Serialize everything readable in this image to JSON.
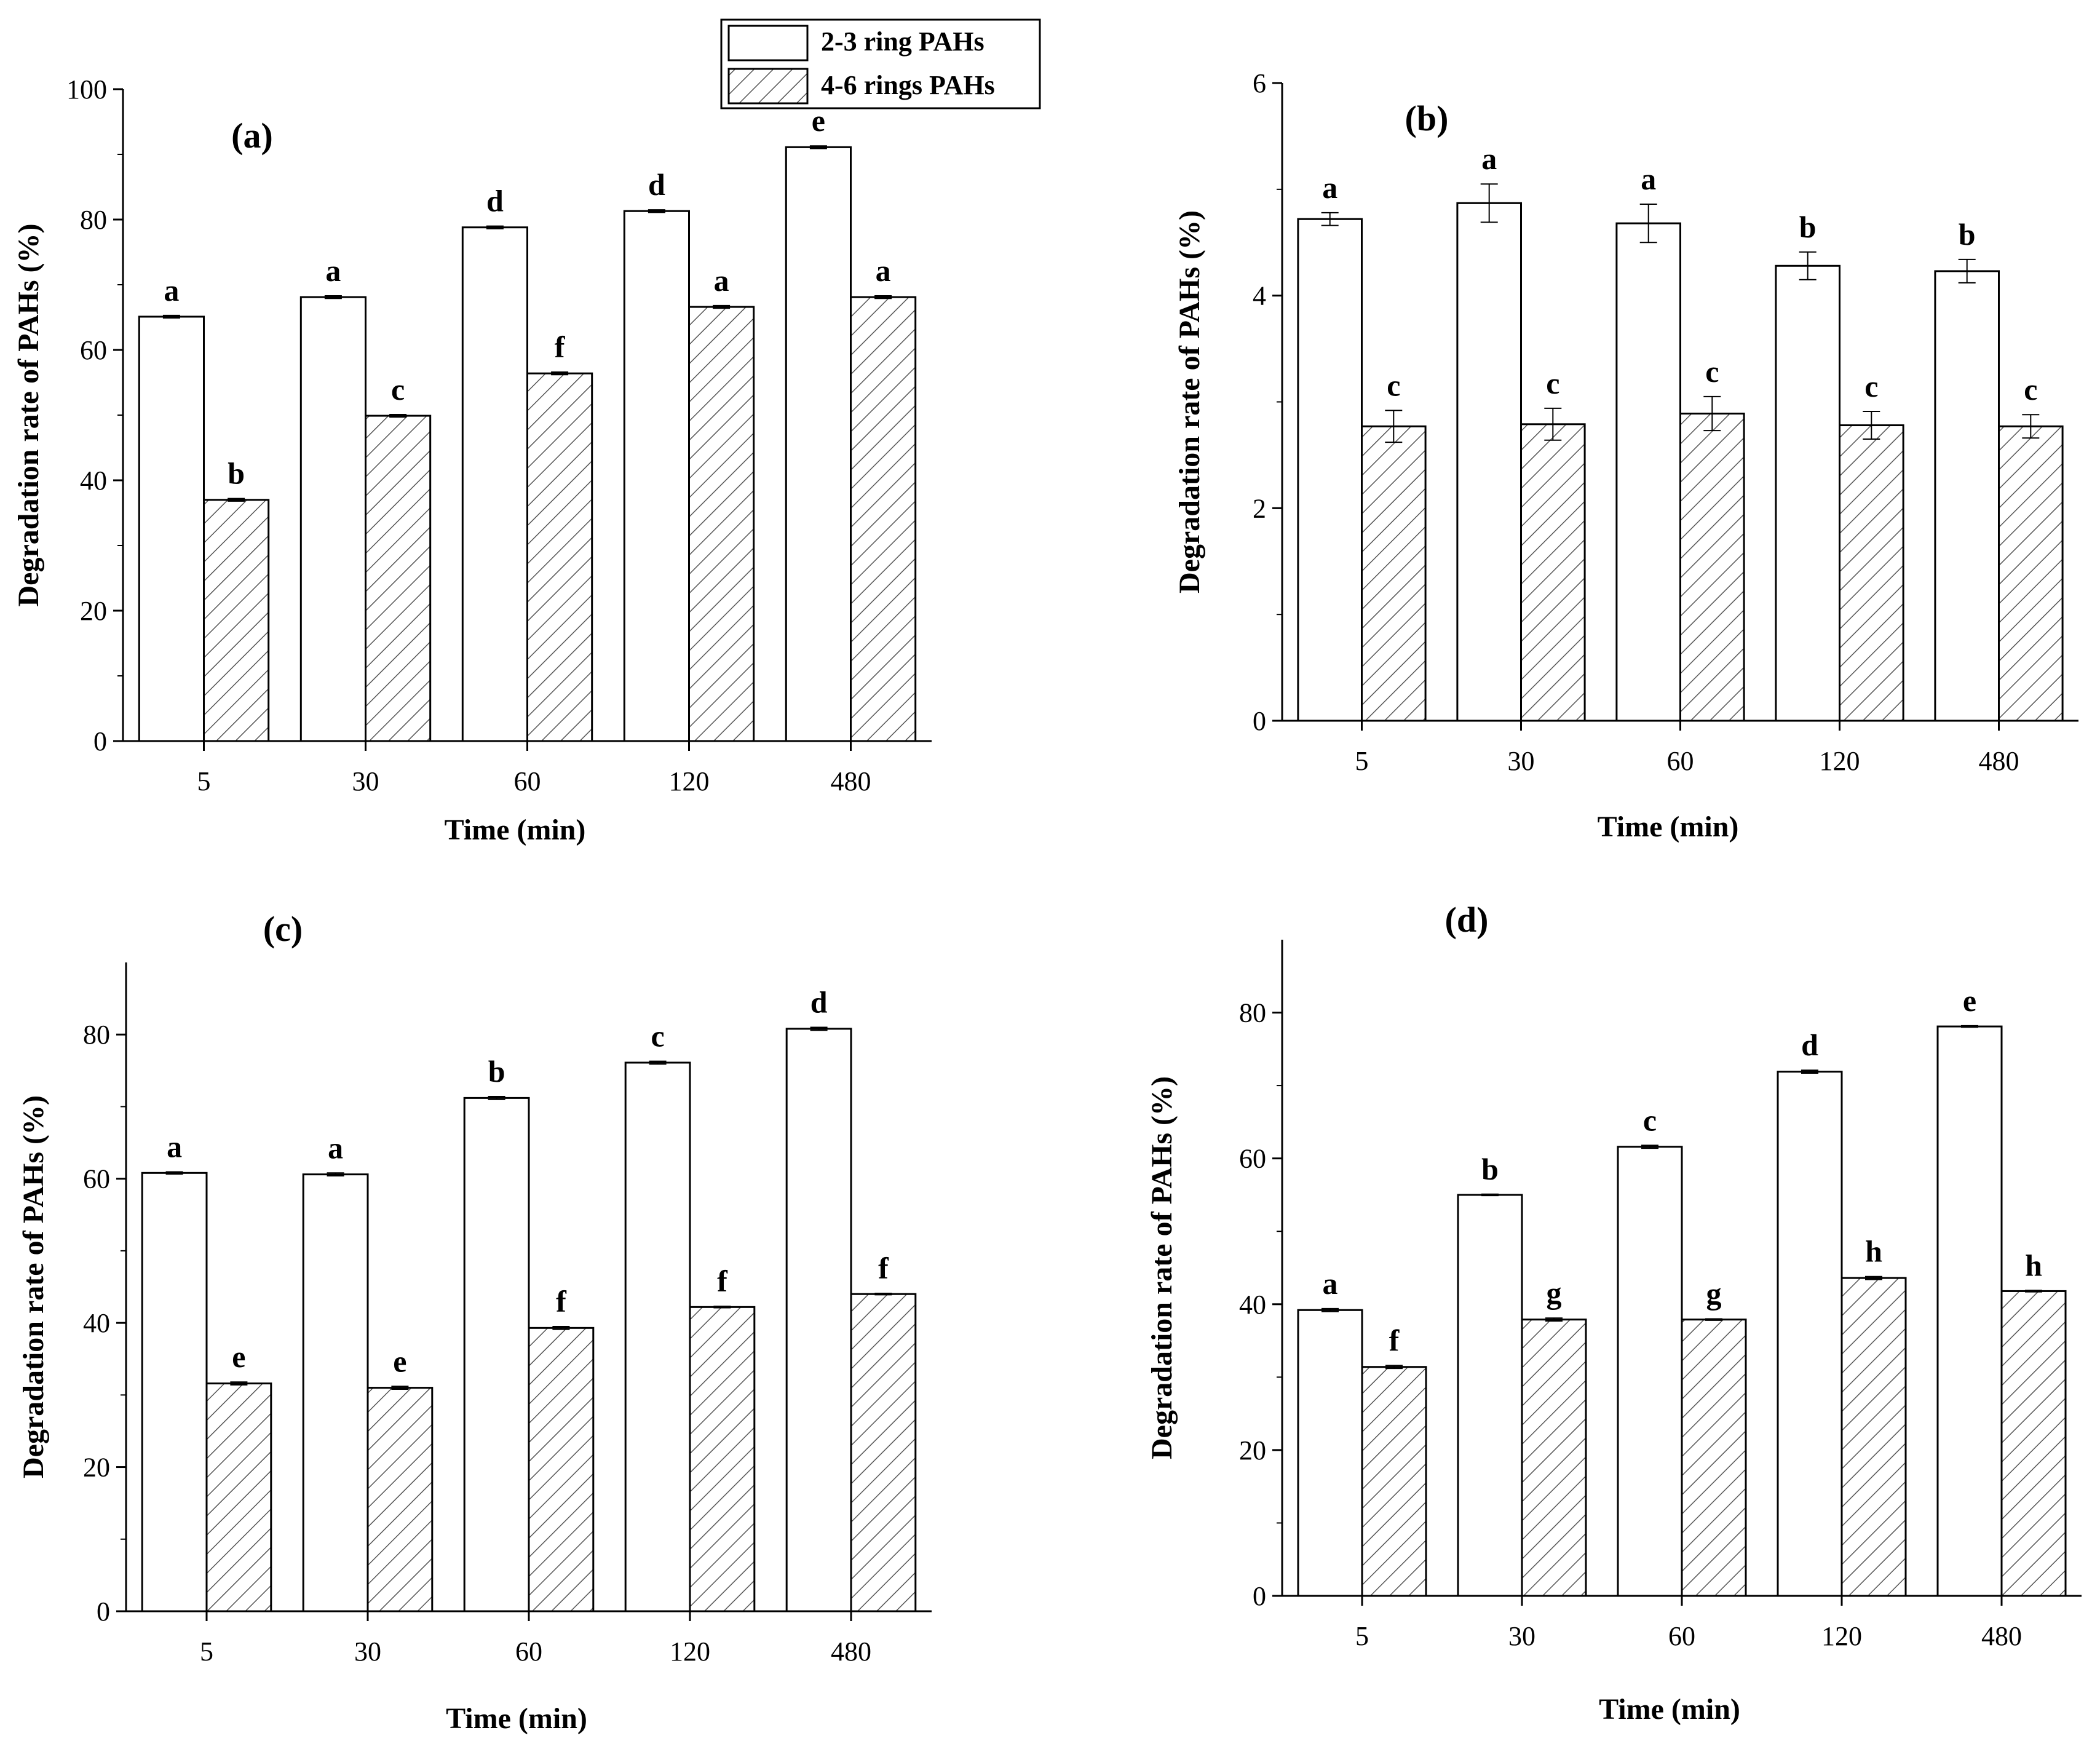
{
  "figure_type": "grouped bar chart with error bars",
  "legend": {
    "placement": "top-center",
    "entries": [
      {
        "label": "2-3 ring PAHs",
        "fill": "open"
      },
      {
        "label": "4-6 rings PAHs",
        "fill": "hatched"
      }
    ]
  },
  "colors": {
    "axis": "#000000",
    "bar_stroke": "#000000",
    "bar_fill": "#ffffff",
    "hatch": "#555555",
    "error_bar": "#000000"
  },
  "chart_data": [
    {
      "type": "bar",
      "panel": "(a)",
      "title": "(a)",
      "xlabel": "Time (min)",
      "ylabel": "Degradation rate of PAHs (%)",
      "ylim": [
        0,
        100
      ],
      "yticks": [
        0,
        20,
        40,
        60,
        80,
        100
      ],
      "categories": [
        "5",
        "30",
        "60",
        "120",
        "480"
      ],
      "series": [
        {
          "name": "2-3 ring PAHs",
          "values": [
            65.1,
            68.1,
            78.8,
            81.3,
            91.1
          ],
          "errors": [
            0.2,
            0.2,
            0.2,
            0.2,
            0.2
          ],
          "labels": [
            "a",
            "a",
            "d",
            "d",
            "e"
          ]
        },
        {
          "name": "4-6 rings PAHs",
          "values": [
            37.0,
            49.9,
            56.4,
            66.6,
            68.1
          ],
          "errors": [
            0.2,
            0.2,
            0.2,
            0.2,
            0.2
          ],
          "labels": [
            "b",
            "c",
            "f",
            "a",
            "a"
          ]
        }
      ]
    },
    {
      "type": "bar",
      "panel": "(b)",
      "title": "(b)",
      "xlabel": "Time (min)",
      "ylabel": "Degradation rate of PAHs (%)",
      "ylim": [
        0,
        6
      ],
      "yticks": [
        0,
        2,
        4,
        6
      ],
      "categories": [
        "5",
        "30",
        "60",
        "120",
        "480"
      ],
      "series": [
        {
          "name": "2-3 ring PAHs",
          "values": [
            4.72,
            4.87,
            4.68,
            4.28,
            4.23
          ],
          "errors": [
            0.06,
            0.18,
            0.18,
            0.13,
            0.11
          ],
          "labels": [
            "a",
            "a",
            "a",
            "b",
            "b"
          ]
        },
        {
          "name": "4-6 rings PAHs",
          "values": [
            2.77,
            2.79,
            2.89,
            2.78,
            2.77
          ],
          "errors": [
            0.15,
            0.15,
            0.16,
            0.13,
            0.11
          ],
          "labels": [
            "c",
            "c",
            "c",
            "c",
            "c"
          ]
        }
      ]
    },
    {
      "type": "bar",
      "panel": "(c)",
      "title": "(c)",
      "xlabel": "Time (min)",
      "ylabel": "Degradation rate of PAHs (%)",
      "ylim": [
        0,
        90
      ],
      "yticks": [
        0,
        20,
        40,
        60,
        80
      ],
      "categories": [
        "5",
        "30",
        "60",
        "120",
        "480"
      ],
      "series": [
        {
          "name": "2-3 ring PAHs",
          "values": [
            60.8,
            60.6,
            71.2,
            76.1,
            80.8
          ],
          "errors": [
            0.15,
            0.2,
            0.2,
            0.2,
            0.2
          ],
          "labels": [
            "a",
            "a",
            "b",
            "c",
            "d"
          ]
        },
        {
          "name": "4-6 rings PAHs",
          "values": [
            31.6,
            31.0,
            39.3,
            42.2,
            44.0
          ],
          "errors": [
            0.2,
            0.2,
            0.2,
            0.1,
            0.1
          ],
          "labels": [
            "e",
            "e",
            "f",
            "f",
            "f"
          ]
        }
      ]
    },
    {
      "type": "bar",
      "panel": "(d)",
      "title": "(d)",
      "xlabel": "Time (min)",
      "ylabel": "Degradation rate of PAHs (%)",
      "ylim": [
        0,
        90
      ],
      "yticks": [
        0,
        20,
        40,
        60,
        80
      ],
      "categories": [
        "5",
        "30",
        "60",
        "120",
        "480"
      ],
      "series": [
        {
          "name": "2-3 ring PAHs",
          "values": [
            39.2,
            55.0,
            61.6,
            71.9,
            78.1
          ],
          "errors": [
            0.2,
            0.1,
            0.2,
            0.2,
            0.1
          ],
          "labels": [
            "a",
            "b",
            "c",
            "d",
            "e"
          ]
        },
        {
          "name": "4-6 rings PAHs",
          "values": [
            31.4,
            37.9,
            37.9,
            43.6,
            41.8
          ],
          "errors": [
            0.2,
            0.2,
            0.1,
            0.2,
            0.1
          ],
          "labels": [
            "f",
            "g",
            "g",
            "h",
            "h"
          ]
        }
      ]
    }
  ]
}
